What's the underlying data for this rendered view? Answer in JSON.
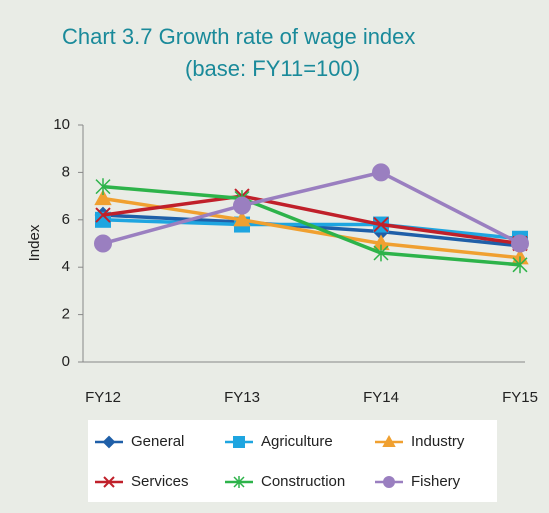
{
  "chart_data": {
    "type": "line",
    "title": "Chart 3.7    Growth rate of wage index",
    "subtitle": "(base: FY11=100)",
    "ylabel": "Index",
    "categories": [
      "FY12",
      "FY13",
      "FY14",
      "FY15"
    ],
    "ylim": [
      0,
      10
    ],
    "yticks": [
      0,
      2,
      4,
      6,
      8,
      10
    ],
    "grid": false,
    "series": [
      {
        "name": "General",
        "color": "#1f5fa8",
        "marker": "diamond",
        "values": [
          6.2,
          5.9,
          5.5,
          4.9
        ]
      },
      {
        "name": "Agriculture",
        "color": "#1ea5e0",
        "marker": "square",
        "values": [
          6.0,
          5.8,
          5.8,
          5.2
        ]
      },
      {
        "name": "Industry",
        "color": "#f0a030",
        "marker": "triangle",
        "values": [
          6.9,
          6.0,
          5.0,
          4.4
        ]
      },
      {
        "name": "Services",
        "color": "#c0202a",
        "marker": "x",
        "values": [
          6.2,
          7.0,
          5.8,
          5.0
        ]
      },
      {
        "name": "Construction",
        "color": "#2db34a",
        "marker": "asterisk",
        "values": [
          7.4,
          6.9,
          4.6,
          4.1
        ]
      },
      {
        "name": "Fishery",
        "color": "#9a7fc0",
        "marker": "circle",
        "values": [
          5.0,
          6.6,
          8.0,
          5.0
        ]
      }
    ]
  }
}
